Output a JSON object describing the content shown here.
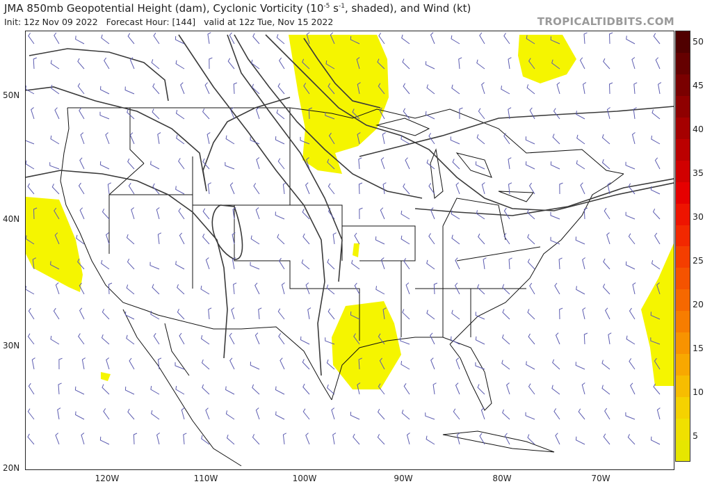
{
  "header": {
    "title_pre": "JMA 850mb Geopotential Height (dam), Cyclonic Vorticity (10",
    "title_sup": "-5",
    "title_mid": " s",
    "title_sup2": "-1",
    "title_post": ", shaded), and Wind (kt)",
    "init": "Init: 12z Nov 09 2022",
    "forecast_hour": "Forecast Hour: [144]",
    "valid": "valid at 12z Tue, Nov 15 2022",
    "site": "TROPICALTIDBITS.COM"
  },
  "map": {
    "lat_labels": [
      "50N",
      "40N",
      "30N",
      "20N"
    ],
    "lon_labels": [
      "120W",
      "110W",
      "100W",
      "90W",
      "80W",
      "70W"
    ],
    "vorticity_shade_color": "#f5f500",
    "contour_color": "#3a3a3a",
    "border_color": "#111111",
    "barb_color": "#5b5bb0"
  },
  "colorbar": {
    "ticks": [
      "50",
      "45",
      "40",
      "35",
      "30",
      "25",
      "20",
      "15",
      "10",
      "5"
    ],
    "colors": [
      "#e6e600",
      "#f0e000",
      "#f5d200",
      "#f7bd00",
      "#f8a800",
      "#f89300",
      "#f77d00",
      "#f66800",
      "#f55300",
      "#f43e00",
      "#f22800",
      "#ee1400",
      "#e60000",
      "#d10000",
      "#bb0000",
      "#a50000",
      "#8f0000",
      "#7a0000",
      "#650000",
      "#500000"
    ]
  }
}
